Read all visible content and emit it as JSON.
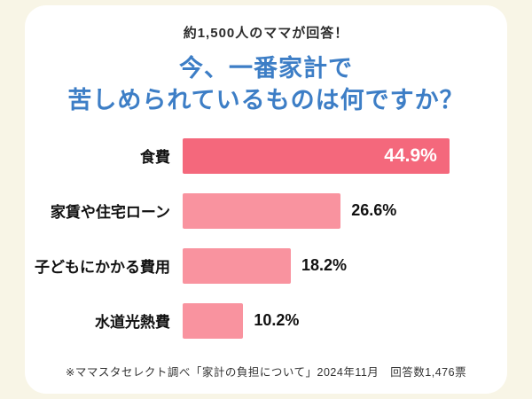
{
  "header": {
    "subtitle": "約1,500人のママが回答！"
  },
  "colors": {
    "background": "#f8f5e6",
    "card": "#ffffff",
    "title_blue": "#3d7ec6",
    "bar_primary": "#f4687c",
    "bar_secondary": "#f9939f",
    "text_dark": "#2b2b2b"
  },
  "chart_data": {
    "type": "bar",
    "orientation": "horizontal",
    "title": "今、一番家計で苦しめられているものは何ですか？",
    "title_line1": "今、一番家計で",
    "title_line2": "苦しめられているものは何ですか？",
    "categories": [
      "食費",
      "家賃や住宅ローン",
      "子どもにかかる費用",
      "水道光熱費"
    ],
    "values": [
      44.9,
      26.6,
      18.2,
      10.2
    ],
    "value_labels": [
      "44.9%",
      "26.6%",
      "18.2%",
      "10.2%"
    ],
    "xlim": [
      0,
      50
    ],
    "grid": false,
    "legend": "none"
  },
  "footer": {
    "note": "※ママスタセレクト調べ「家計の負担について」2024年11月　回答数1,476票"
  }
}
